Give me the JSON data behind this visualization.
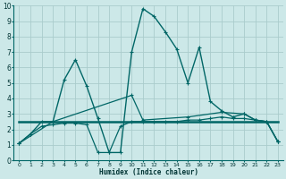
{
  "background_color": "#cce8e8",
  "grid_color": "#aacccc",
  "line_color": "#006666",
  "xlabel": "Humidex (Indice chaleur)",
  "xlim": [
    -0.5,
    23.5
  ],
  "ylim": [
    0,
    10
  ],
  "xticks": [
    0,
    1,
    2,
    3,
    4,
    5,
    6,
    7,
    8,
    9,
    10,
    11,
    12,
    13,
    14,
    15,
    16,
    17,
    18,
    19,
    20,
    21,
    22,
    23
  ],
  "yticks": [
    0,
    1,
    2,
    3,
    4,
    5,
    6,
    7,
    8,
    9,
    10
  ],
  "series": [
    {
      "x": [
        0,
        1,
        2,
        3,
        4,
        5,
        6,
        7,
        8,
        9,
        10,
        11,
        12,
        13,
        14,
        15,
        16,
        17,
        18,
        19,
        20,
        21,
        22,
        23
      ],
      "y": [
        1.1,
        1.7,
        2.5,
        2.5,
        5.2,
        6.5,
        4.8,
        2.7,
        0.5,
        0.5,
        7.0,
        9.8,
        9.3,
        8.3,
        7.2,
        5.0,
        7.3,
        3.8,
        3.2,
        2.8,
        3.0,
        2.6,
        2.5,
        1.2
      ],
      "marker": true,
      "linewidth": 1.0
    },
    {
      "x": [
        0,
        3,
        10,
        11,
        15,
        18,
        20,
        21,
        22,
        23
      ],
      "y": [
        1.1,
        2.5,
        4.2,
        2.6,
        2.8,
        3.1,
        3.0,
        2.6,
        2.5,
        1.2
      ],
      "marker": true,
      "linewidth": 0.9
    },
    {
      "x": [
        0,
        3,
        6,
        9,
        12,
        15,
        18,
        21,
        22,
        23
      ],
      "y": [
        2.5,
        2.5,
        2.5,
        2.5,
        2.5,
        2.5,
        2.5,
        2.5,
        2.5,
        2.5
      ],
      "marker": false,
      "linewidth": 1.8
    },
    {
      "x": [
        0,
        1,
        2,
        3,
        4,
        5,
        6,
        7,
        8,
        9,
        10,
        11,
        12,
        13,
        14,
        15,
        16,
        17,
        18,
        19,
        20,
        21,
        22,
        23
      ],
      "y": [
        1.1,
        1.7,
        2.2,
        2.3,
        2.4,
        2.4,
        2.3,
        0.5,
        0.5,
        2.2,
        2.5,
        2.5,
        2.5,
        2.5,
        2.5,
        2.6,
        2.6,
        2.7,
        2.8,
        2.7,
        2.7,
        2.6,
        2.5,
        1.2
      ],
      "marker": true,
      "linewidth": 0.9
    }
  ]
}
